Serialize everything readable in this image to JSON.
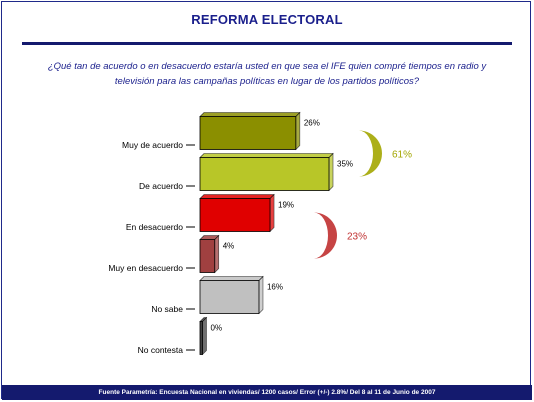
{
  "title": "REFORMA ELECTORAL",
  "question": "¿Qué tan de acuerdo o en desacuerdo estaría usted en que sea el IFE quien compré tiempos en radio y televisión para las campañas políticas en lugar de los partidos políticos?",
  "footer": "Fuente Parametría: Encuesta Nacional en viviendas/ 1200 casos/ Error (+/-) 2.8%/ Del 8 al 11 de Junio de 2007",
  "chart_data": {
    "type": "bar",
    "orientation": "horizontal",
    "categories": [
      "Muy de acuerdo",
      "De acuerdo",
      "En desacuerdo",
      "Muy en desacuerdo",
      "No sabe",
      "No contesta"
    ],
    "values": [
      26,
      35,
      19,
      4,
      16,
      0
    ],
    "value_labels": [
      "26%",
      "35%",
      "19%",
      "4%",
      "16%",
      "0%"
    ],
    "colors": [
      "#8b8f00",
      "#b8c628",
      "#e00000",
      "#a04040",
      "#c0c0c0",
      "#404040"
    ],
    "groups": [
      {
        "label": "61%",
        "members": [
          "Muy de acuerdo",
          "De acuerdo"
        ],
        "color": "#a3a600"
      },
      {
        "label": "23%",
        "members": [
          "En desacuerdo",
          "Muy en desacuerdo"
        ],
        "color": "#c03030"
      }
    ],
    "xlim": [
      0,
      35
    ],
    "grid": false,
    "legend": "none"
  }
}
